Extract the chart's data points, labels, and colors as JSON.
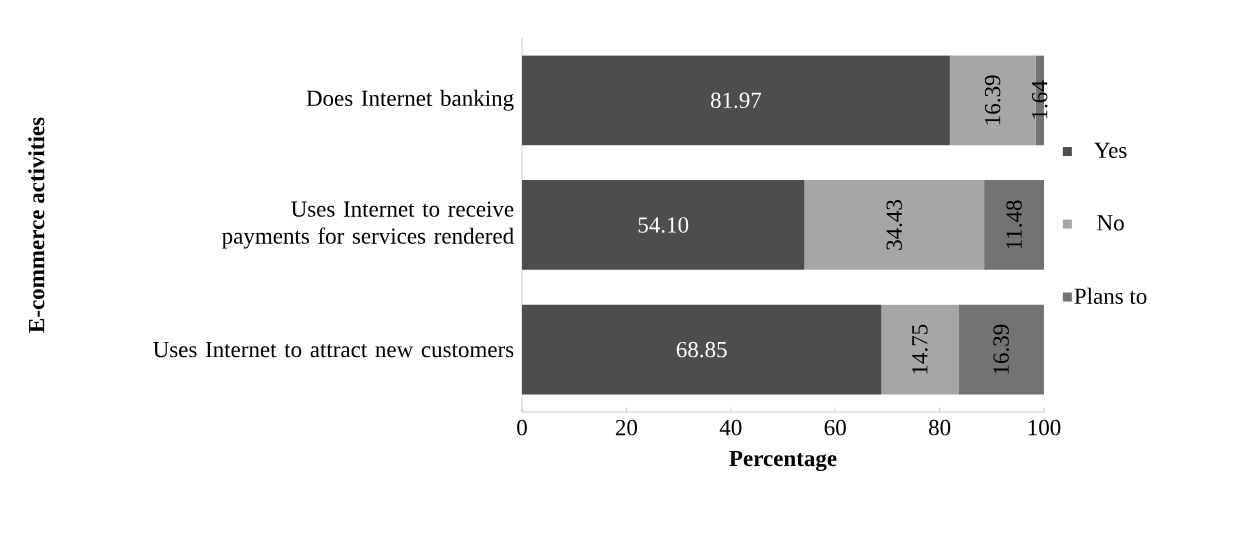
{
  "chart_data": {
    "type": "bar",
    "orientation": "horizontal",
    "stacked": true,
    "xlabel": "Percentage",
    "ylabel": "E-commerce activities",
    "categories": [
      "Does Internet banking",
      "Uses Internet to receive payments for services rendered",
      "Uses Internet to attract new customers"
    ],
    "series": [
      {
        "name": "Yes",
        "color": "#4d4d4d",
        "values": [
          81.97,
          54.1,
          68.85
        ],
        "value_labels": [
          "81.97",
          "54.10",
          "68.85"
        ]
      },
      {
        "name": "No",
        "color": "#a6a6a6",
        "values": [
          16.39,
          34.43,
          14.75
        ],
        "value_labels": [
          "16.39",
          "34.43",
          "14.75"
        ]
      },
      {
        "name": "Plans to",
        "color": "#737373",
        "values": [
          1.64,
          11.48,
          16.39
        ],
        "value_labels": [
          "1.64",
          "11.48",
          "16.39"
        ]
      }
    ],
    "xlim": [
      0,
      100
    ],
    "xticks": [
      0,
      20,
      40,
      60,
      80,
      100
    ],
    "legend": "right"
  }
}
